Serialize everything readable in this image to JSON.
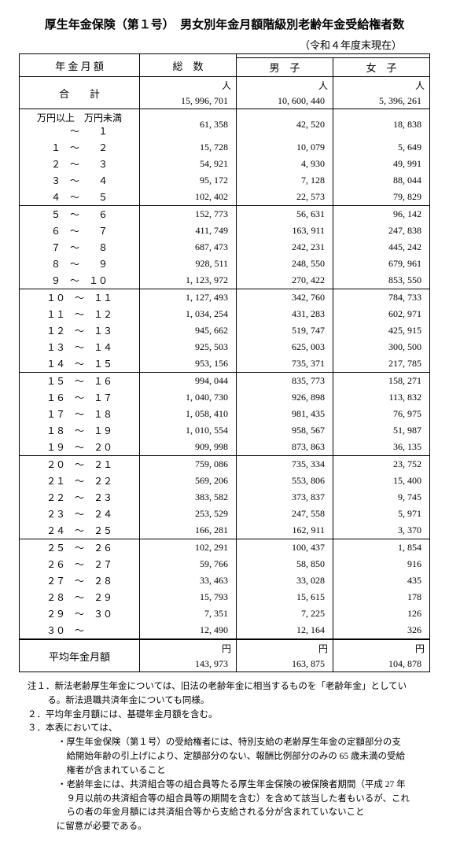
{
  "title": "厚生年金保険（第１号）　男女別年金月額階級別老齢年金受給権者数",
  "subtitle": "（令和４年度末現在）",
  "headers": {
    "col1": "年 金 月 額",
    "col2": "総　数",
    "col3": "男　子",
    "col4": "女　子",
    "sum": "合　　計",
    "unit": "人",
    "yen": "円",
    "avg": "平均年金月額",
    "bracket": "万円以上　万円未満"
  },
  "totals": {
    "all": "15, 996, 701",
    "m": "10, 600, 440",
    "f": "5, 396, 261"
  },
  "avg": {
    "all": "143, 973",
    "m": "163, 875",
    "f": "104, 878"
  },
  "rows": [
    {
      "l": "　　～　　１",
      "a": "61, 358",
      "m": "42, 520",
      "f": "18, 838"
    },
    {
      "l": "１　～　　２",
      "a": "15, 728",
      "m": "10, 079",
      "f": "5, 649"
    },
    {
      "l": "２　～　　３",
      "a": "54, 921",
      "m": "4, 930",
      "f": "49, 991"
    },
    {
      "l": "３　～　　４",
      "a": "95, 172",
      "m": "7, 128",
      "f": "88, 044"
    },
    {
      "l": "４　～　　５",
      "a": "102, 402",
      "m": "22, 573",
      "f": "79, 829"
    },
    {
      "l": "５　～　　６",
      "a": "152, 773",
      "m": "56, 631",
      "f": "96, 142"
    },
    {
      "l": "６　～　　７",
      "a": "411, 749",
      "m": "163, 911",
      "f": "247, 838"
    },
    {
      "l": "７　～　　８",
      "a": "687, 473",
      "m": "242, 231",
      "f": "445, 242"
    },
    {
      "l": "８　～　　９",
      "a": "928, 511",
      "m": "248, 550",
      "f": "679, 961"
    },
    {
      "l": "９　～　１０",
      "a": "1, 123, 972",
      "m": "270, 422",
      "f": "853, 550"
    },
    {
      "l": "１０　～　１１",
      "a": "1, 127, 493",
      "m": "342, 760",
      "f": "784, 733"
    },
    {
      "l": "１１　～　１２",
      "a": "1, 034, 254",
      "m": "431, 283",
      "f": "602, 971"
    },
    {
      "l": "１２　～　１３",
      "a": "945, 662",
      "m": "519, 747",
      "f": "425, 915"
    },
    {
      "l": "１３　～　１４",
      "a": "925, 503",
      "m": "625, 003",
      "f": "300, 500"
    },
    {
      "l": "１４　～　１５",
      "a": "953, 156",
      "m": "735, 371",
      "f": "217, 785"
    },
    {
      "l": "１５　～　１６",
      "a": "994, 044",
      "m": "835, 773",
      "f": "158, 271"
    },
    {
      "l": "１６　～　１７",
      "a": "1, 040, 730",
      "m": "926, 898",
      "f": "113, 832"
    },
    {
      "l": "１７　～　１８",
      "a": "1, 058, 410",
      "m": "981, 435",
      "f": "76, 975"
    },
    {
      "l": "１８　～　１９",
      "a": "1, 010, 554",
      "m": "958, 567",
      "f": "51, 987"
    },
    {
      "l": "１９　～　２０",
      "a": "909, 998",
      "m": "873, 863",
      "f": "36, 135"
    },
    {
      "l": "２０　～　２１",
      "a": "759, 086",
      "m": "735, 334",
      "f": "23, 752"
    },
    {
      "l": "２１　～　２２",
      "a": "569, 206",
      "m": "553, 806",
      "f": "15, 400"
    },
    {
      "l": "２２　～　２３",
      "a": "383, 582",
      "m": "373, 837",
      "f": "9, 745"
    },
    {
      "l": "２３　～　２４",
      "a": "253, 529",
      "m": "247, 558",
      "f": "5, 971"
    },
    {
      "l": "２４　～　２５",
      "a": "166, 281",
      "m": "162, 911",
      "f": "3, 370"
    },
    {
      "l": "２５　～　２６",
      "a": "102, 291",
      "m": "100, 437",
      "f": "1, 854"
    },
    {
      "l": "２６　～　２７",
      "a": "59, 766",
      "m": "58, 850",
      "f": "916"
    },
    {
      "l": "２７　～　２８",
      "a": "33, 463",
      "m": "33, 028",
      "f": "435"
    },
    {
      "l": "２８　～　２９",
      "a": "15, 793",
      "m": "15, 615",
      "f": "178"
    },
    {
      "l": "２９　～　３０",
      "a": "7, 351",
      "m": "7, 225",
      "f": "126"
    },
    {
      "l": "３０　～　　　",
      "a": "12, 490",
      "m": "12, 164",
      "f": "326"
    }
  ],
  "groups": [
    0,
    5,
    10,
    15,
    20,
    25,
    31
  ],
  "notes": {
    "n1": "注１．新法老齢厚生年金については、旧法の老齢年金に相当するものを「老齢年金」としている。新法退職共済年金についても同様。",
    "n2": "２．平均年金月額には、基礎年金月額を含む。",
    "n3": "３．本表においては、",
    "n3a": "・厚生年金保険（第１号）の受給権者には、特別支給の老齢厚生年金の定額部分の支給開始年齢の引上げにより、定額部分のない、報酬比例部分のみの 65 歳未満の受給権者が含まれていること",
    "n3b": "・老齢年金には、共済組合等の組合員等たる厚生年金保険の被保険者期間（平成 27 年９月以前の共済組合等の組合員等の期間を含む）を含めて該当した者もいるが、これらの者の年金月額には共済組合等から支給される分が含まれていないこと",
    "n3c": "に留意が必要である。"
  }
}
